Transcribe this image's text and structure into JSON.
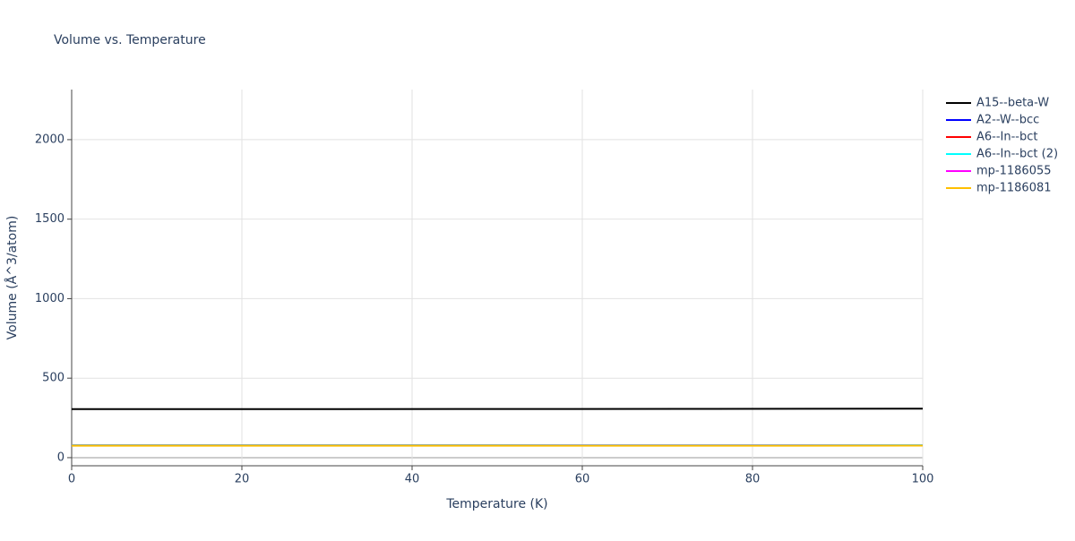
{
  "chart_data": {
    "type": "line",
    "title": "Volume vs. Temperature",
    "x_label": "Temperature (K)",
    "y_label": "Volume (Å^3/atom)",
    "x": [
      0,
      25,
      50,
      75,
      100
    ],
    "series": [
      {
        "name": "A15--beta-W",
        "color": "#000000",
        "values": [
          305,
          305.5,
          306,
          307,
          308
        ]
      },
      {
        "name": "A2--W--bcc",
        "color": "#0000ff",
        "values": [
          77,
          77,
          77.2,
          77.4,
          77.6
        ]
      },
      {
        "name": "A6--In--bct",
        "color": "#ff0000",
        "values": [
          78,
          78,
          78.2,
          78.5,
          78.8
        ]
      },
      {
        "name": "A6--In--bct (2)",
        "color": "#00ffff",
        "values": [
          78,
          78,
          78.2,
          78.5,
          78.8
        ]
      },
      {
        "name": "mp-1186055",
        "color": "#ff00ff",
        "values": [
          76,
          76,
          76.1,
          76.3,
          76.5
        ]
      },
      {
        "name": "mp-1186081",
        "color": "#ffbf00",
        "values": [
          75,
          75,
          75.1,
          75.3,
          75.5
        ]
      }
    ],
    "xlim": [
      0,
      100
    ],
    "xticks": [
      0,
      20,
      40,
      60,
      80,
      100
    ],
    "ylim": [
      -51,
      2315
    ],
    "yticks": [
      0,
      500,
      1000,
      1500,
      2000
    ],
    "grid": true,
    "legend": "right"
  }
}
